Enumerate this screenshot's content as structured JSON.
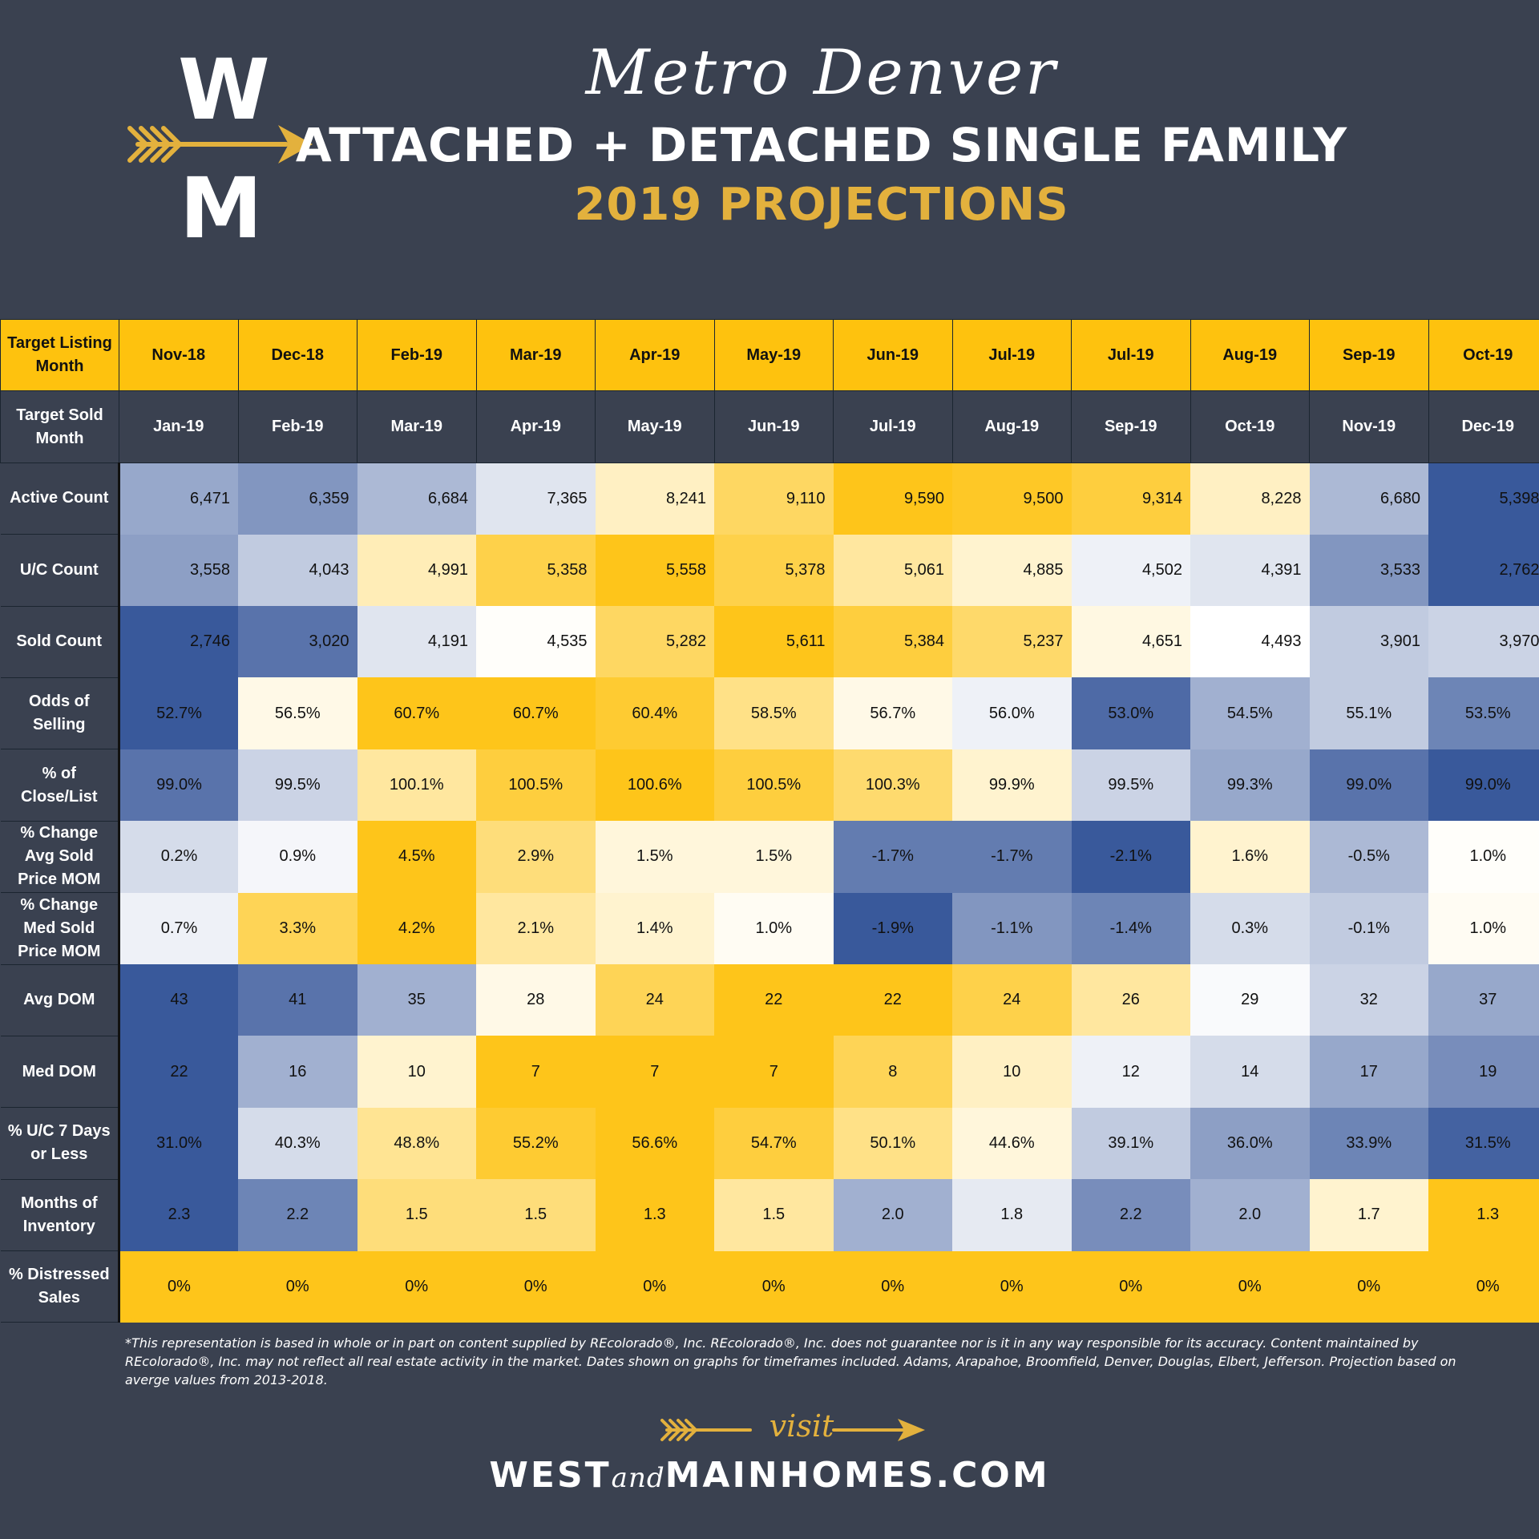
{
  "header": {
    "logo_top": "W",
    "logo_bottom": "M",
    "script_title": "Metro Denver",
    "title": "ATTACHED + DETACHED SINGLE FAMILY",
    "subtitle": "2019 PROJECTIONS"
  },
  "colors": {
    "background": "#3a4150",
    "accent_gold": "#e3b13d",
    "header_yellow": "#fec20e",
    "scale_low": "#2f5096",
    "scale_mid": "#ffffff",
    "scale_high": "#fec20e"
  },
  "chart_data": {
    "type": "heatmap",
    "listing_label": "Target Listing Month",
    "sold_label": "Target Sold Month",
    "listing_months": [
      "Nov-18",
      "Dec-18",
      "Feb-19",
      "Mar-19",
      "Apr-19",
      "May-19",
      "Jun-19",
      "Jul-19",
      "Jul-19",
      "Aug-19",
      "Sep-19",
      "Oct-19"
    ],
    "sold_months": [
      "Jan-19",
      "Feb-19",
      "Mar-19",
      "Apr-19",
      "May-19",
      "Jun-19",
      "Jul-19",
      "Aug-19",
      "Sep-19",
      "Oct-19",
      "Nov-19",
      "Dec-19"
    ],
    "rows": [
      {
        "label": "Active Count",
        "align": "right",
        "values": [
          "6,471",
          "6,359",
          "6,684",
          "7,365",
          "8,241",
          "9,110",
          "9,590",
          "9,500",
          "9,314",
          "8,228",
          "6,680",
          "5,398"
        ],
        "scores": [
          -0.5,
          -0.6,
          -0.4,
          -0.15,
          0.25,
          0.65,
          0.95,
          0.9,
          0.8,
          0.25,
          -0.4,
          -0.95
        ]
      },
      {
        "label": "U/C Count",
        "align": "right",
        "values": [
          "3,558",
          "4,043",
          "4,991",
          "5,358",
          "5,558",
          "5,378",
          "5,061",
          "4,885",
          "4,502",
          "4,391",
          "3,533",
          "2,762"
        ],
        "scores": [
          -0.55,
          -0.3,
          0.3,
          0.75,
          0.95,
          0.75,
          0.4,
          0.2,
          -0.08,
          -0.15,
          -0.6,
          -0.95
        ]
      },
      {
        "label": "Sold Count",
        "align": "right",
        "values": [
          "2,746",
          "3,020",
          "4,191",
          "4,535",
          "5,282",
          "5,611",
          "5,384",
          "5,237",
          "4,651",
          "4,493",
          "3,901",
          "3,970"
        ],
        "scores": [
          -0.95,
          -0.8,
          -0.15,
          0.02,
          0.65,
          0.95,
          0.8,
          0.62,
          0.12,
          0.0,
          -0.3,
          -0.25
        ]
      },
      {
        "label": "Odds of Selling",
        "align": "center",
        "values": [
          "52.7%",
          "56.5%",
          "60.7%",
          "60.7%",
          "60.4%",
          "58.5%",
          "56.7%",
          "56.0%",
          "53.0%",
          "54.5%",
          "55.1%",
          "53.5%"
        ],
        "scores": [
          -0.95,
          0.1,
          0.95,
          0.95,
          0.85,
          0.5,
          0.1,
          -0.08,
          -0.85,
          -0.45,
          -0.3,
          -0.7
        ]
      },
      {
        "label": "% of Close/List",
        "align": "center",
        "values": [
          "99.0%",
          "99.5%",
          "100.1%",
          "100.5%",
          "100.6%",
          "100.5%",
          "100.3%",
          "99.9%",
          "99.5%",
          "99.3%",
          "99.0%",
          "99.0%"
        ],
        "scores": [
          -0.8,
          -0.25,
          0.4,
          0.8,
          0.95,
          0.8,
          0.6,
          0.2,
          -0.25,
          -0.5,
          -0.8,
          -0.95
        ]
      },
      {
        "label": "% Change Avg Sold Price MOM",
        "align": "center",
        "values": [
          "0.2%",
          "0.9%",
          "4.5%",
          "2.9%",
          "1.5%",
          "1.5%",
          "-1.7%",
          "-1.7%",
          "-2.1%",
          "1.6%",
          "-0.5%",
          "1.0%"
        ],
        "scores": [
          -0.2,
          -0.05,
          0.95,
          0.55,
          0.15,
          0.15,
          -0.75,
          -0.75,
          -0.95,
          0.2,
          -0.4,
          0.02
        ]
      },
      {
        "label": "% Change Med Sold Price MOM",
        "align": "center",
        "values": [
          "0.7%",
          "3.3%",
          "4.2%",
          "2.1%",
          "1.4%",
          "1.0%",
          "-1.9%",
          "-1.1%",
          "-1.4%",
          "0.3%",
          "-0.1%",
          "1.0%"
        ],
        "scores": [
          -0.08,
          0.7,
          0.95,
          0.4,
          0.2,
          0.05,
          -0.95,
          -0.6,
          -0.7,
          -0.2,
          -0.3,
          0.05
        ]
      },
      {
        "label": "Avg DOM",
        "align": "center",
        "values": [
          "43",
          "41",
          "35",
          "28",
          "24",
          "22",
          "22",
          "24",
          "26",
          "29",
          "32",
          "37"
        ],
        "scores": [
          -0.95,
          -0.8,
          -0.45,
          0.1,
          0.7,
          0.95,
          0.95,
          0.75,
          0.4,
          -0.03,
          -0.25,
          -0.5
        ]
      },
      {
        "label": "Med DOM",
        "align": "center",
        "values": [
          "22",
          "16",
          "10",
          "7",
          "7",
          "7",
          "8",
          "10",
          "12",
          "14",
          "17",
          "19"
        ],
        "scores": [
          -0.95,
          -0.45,
          0.2,
          0.95,
          0.95,
          0.95,
          0.7,
          0.25,
          -0.08,
          -0.2,
          -0.5,
          -0.65
        ]
      },
      {
        "label": "% U/C 7 Days or Less",
        "align": "center",
        "values": [
          "31.0%",
          "40.3%",
          "48.8%",
          "55.2%",
          "56.6%",
          "54.7%",
          "50.1%",
          "44.6%",
          "39.1%",
          "36.0%",
          "33.9%",
          "31.5%"
        ],
        "scores": [
          -0.95,
          -0.2,
          0.45,
          0.85,
          0.95,
          0.8,
          0.5,
          0.15,
          -0.3,
          -0.55,
          -0.7,
          -0.9
        ]
      },
      {
        "label": "Months of Inventory",
        "align": "center",
        "values": [
          "2.3",
          "2.2",
          "1.5",
          "1.5",
          "1.3",
          "1.5",
          "2.0",
          "1.8",
          "2.2",
          "2.0",
          "1.7",
          "1.3"
        ],
        "scores": [
          -0.95,
          -0.7,
          0.55,
          0.55,
          0.95,
          0.4,
          -0.45,
          -0.12,
          -0.65,
          -0.45,
          0.2,
          0.95
        ]
      },
      {
        "label": "% Distressed Sales",
        "align": "center",
        "values": [
          "0%",
          "0%",
          "0%",
          "0%",
          "0%",
          "0%",
          "0%",
          "0%",
          "0%",
          "0%",
          "0%",
          "0%"
        ],
        "scores": [
          0.95,
          0.95,
          0.95,
          0.95,
          0.95,
          0.95,
          0.95,
          0.95,
          0.95,
          0.95,
          0.95,
          0.95
        ]
      }
    ]
  },
  "footer": {
    "disclaimer": "*This representation is based in whole or in part on content supplied by REcolorado®, Inc. REcolorado®, Inc. does not guarantee nor is it in any way responsible for its accuracy. Content maintained by REcolorado®, Inc. may not reflect all real estate activity in the market. Dates shown on graphs for timeframes included.  Adams, Arapahoe, Broomfield, Denver, Douglas, Elbert, Jefferson. Projection based on averge values from 2013-2018.",
    "visit": "visit",
    "site_part1": "WEST",
    "site_part2": "and",
    "site_part3": "MAINHOMES.COM"
  }
}
